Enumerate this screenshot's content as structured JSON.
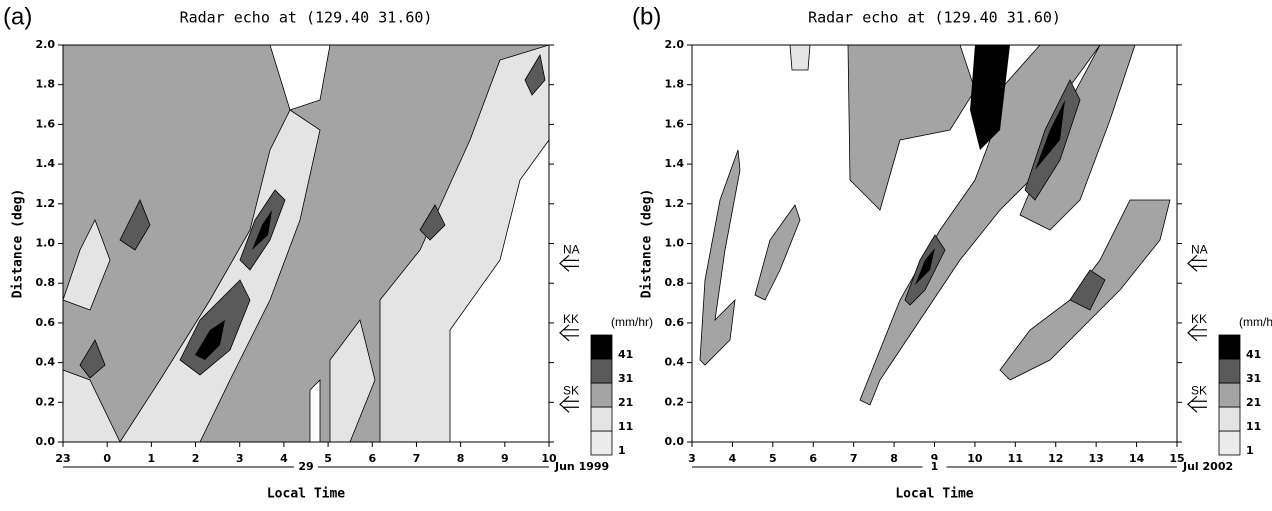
{
  "chart_data": [
    {
      "type": "contour",
      "panel_label": "(a)",
      "title": "Radar echo at (129.40 31.60)",
      "xlabel": "Local Time",
      "ylabel": "Distance (deg)",
      "xlim": [
        -1,
        10
      ],
      "xticks": [
        {
          "value": -1,
          "label": "23"
        },
        0,
        1,
        2,
        3,
        4,
        5,
        6,
        7,
        8,
        9,
        10
      ],
      "ylim": [
        0,
        2
      ],
      "yticks": [
        {
          "value": 0,
          "label": "0.0"
        },
        0.2,
        0.4,
        0.6,
        0.8,
        {
          "value": 1,
          "label": "1.0"
        },
        1.2,
        1.4,
        1.6,
        1.8,
        {
          "value": 2,
          "label": "2.0"
        }
      ],
      "date_day": "29",
      "date_month": "Jun 1999",
      "stations": [
        {
          "label": "NA",
          "distance": 0.9
        },
        {
          "label": "KK",
          "distance": 0.55
        },
        {
          "label": "SK",
          "distance": 0.19
        }
      ],
      "legend_unit": "(mm/hr)",
      "levels": [
        1,
        11,
        21,
        31,
        41
      ],
      "colors": [
        "#ececec",
        "#e4e4e4",
        "#a4a4a4",
        "#5a5a5a",
        "#000000"
      ]
    },
    {
      "type": "contour",
      "panel_label": "(b)",
      "title": "Radar echo at (129.40 31.60)",
      "xlabel": "Local Time",
      "ylabel": "Distance (deg)",
      "xlim": [
        3,
        15
      ],
      "xticks": [
        3,
        4,
        5,
        6,
        7,
        8,
        9,
        10,
        11,
        12,
        13,
        14,
        15
      ],
      "ylim": [
        0,
        2
      ],
      "yticks": [
        {
          "value": 0,
          "label": "0.0"
        },
        0.2,
        0.4,
        0.6,
        0.8,
        {
          "value": 1,
          "label": "1.0"
        },
        1.2,
        1.4,
        1.6,
        1.8,
        {
          "value": 2,
          "label": "2.0"
        }
      ],
      "date_day": "1",
      "date_month": "Jul 2002",
      "stations": [
        {
          "label": "NA",
          "distance": 0.9
        },
        {
          "label": "KK",
          "distance": 0.55
        },
        {
          "label": "SK",
          "distance": 0.19
        }
      ],
      "legend_unit": "(mm/hr)",
      "levels": [
        1,
        11,
        21,
        31,
        41
      ],
      "colors": [
        "#ececec",
        "#e4e4e4",
        "#a4a4a4",
        "#5a5a5a",
        "#000000"
      ]
    }
  ]
}
